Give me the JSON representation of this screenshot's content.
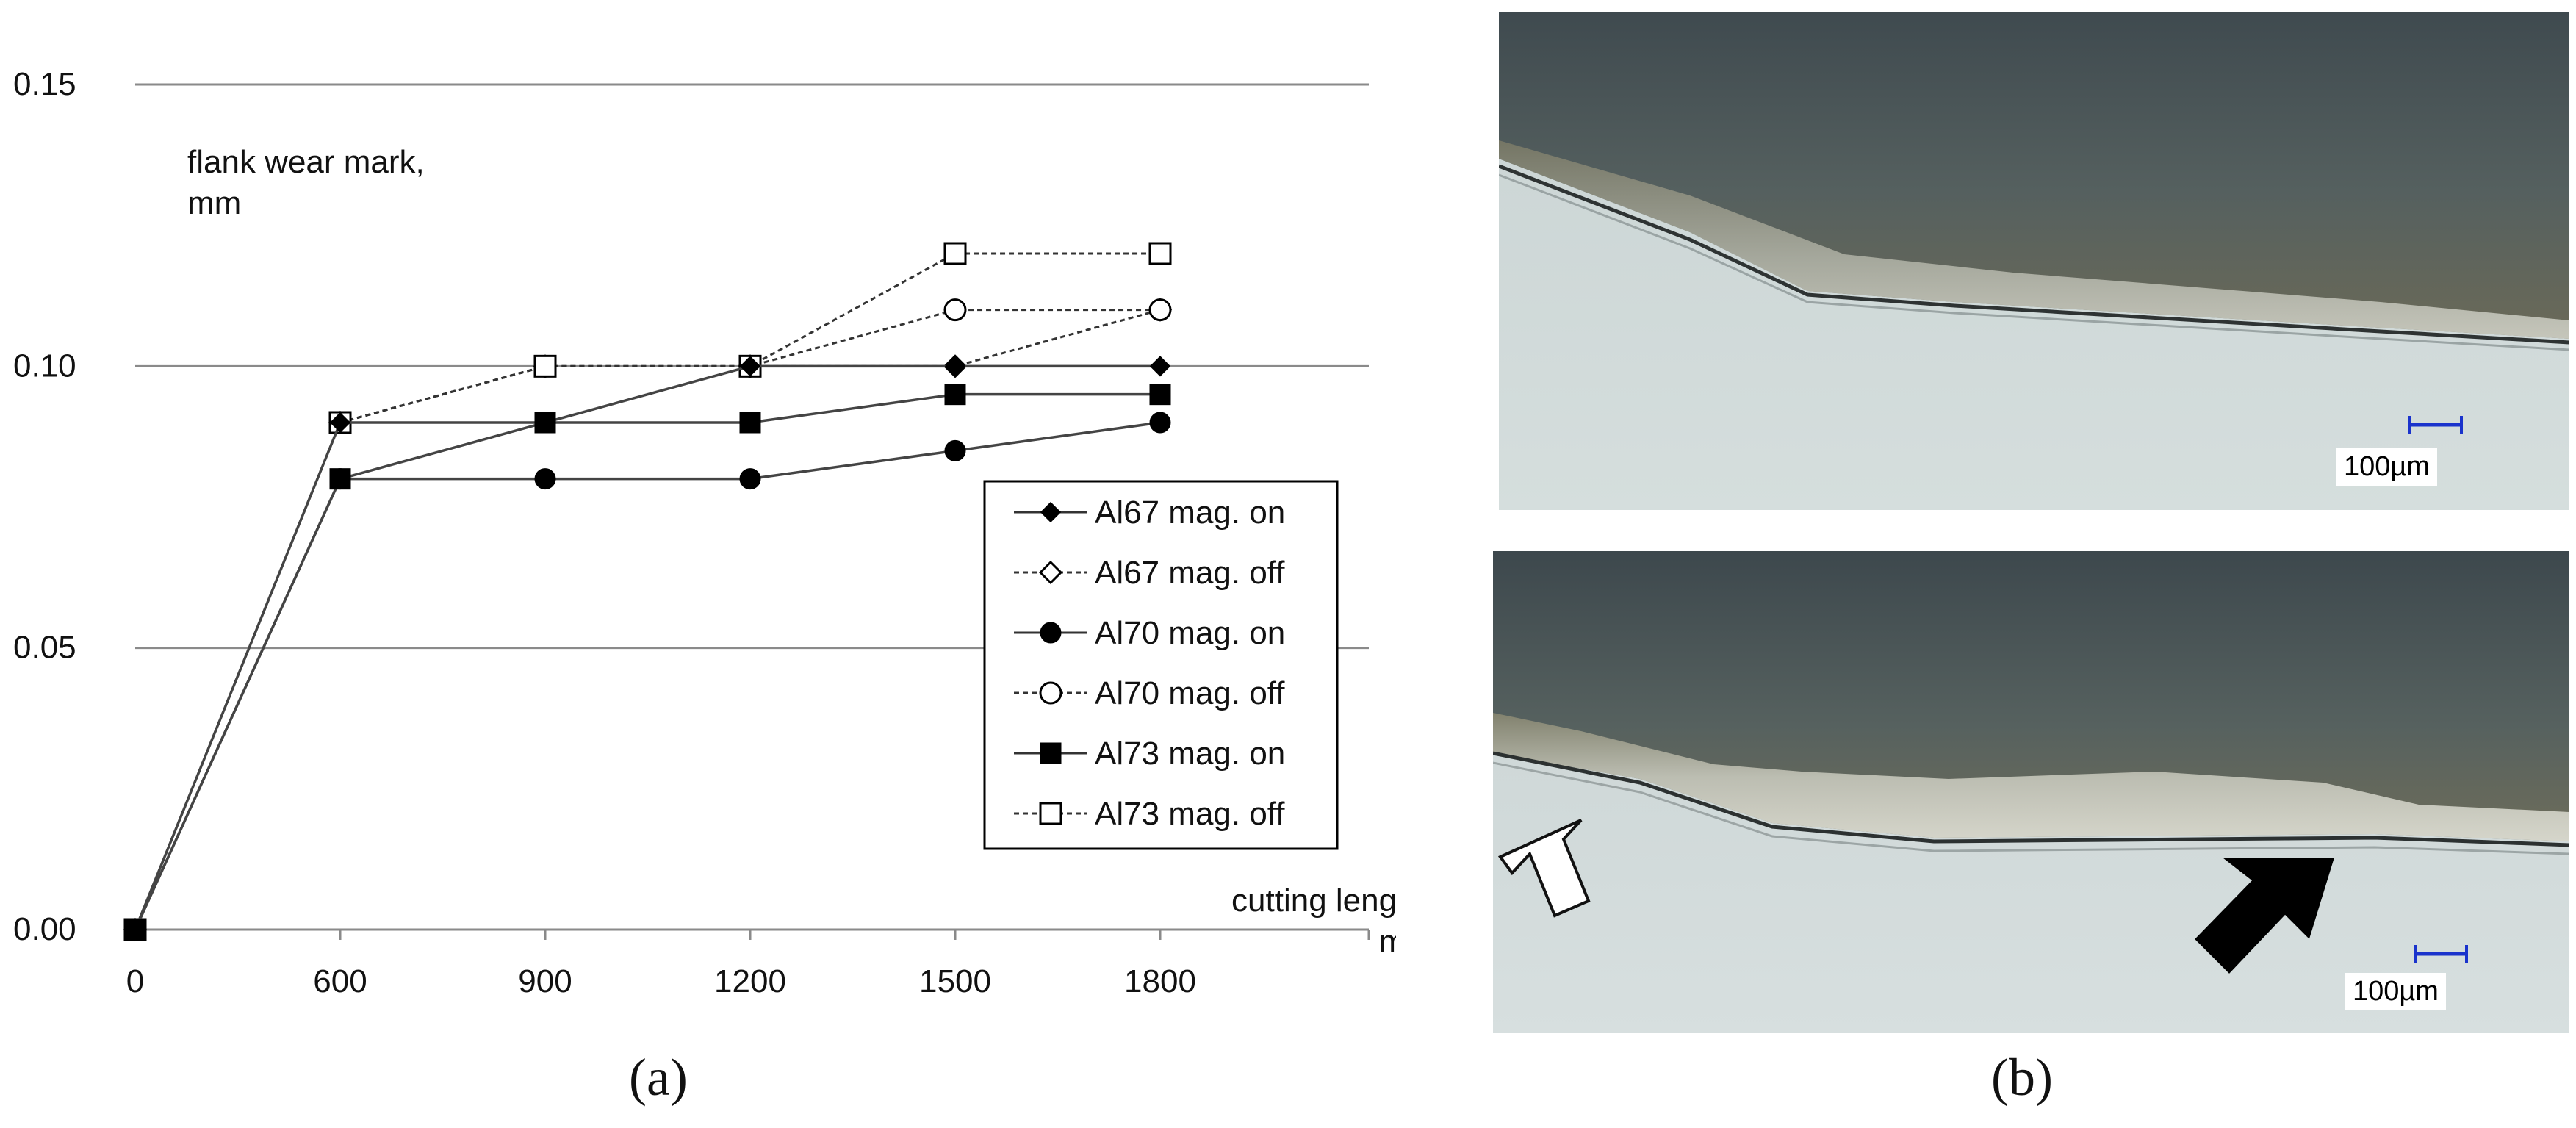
{
  "chart_data": {
    "type": "line",
    "ylabel": "flank wear mark,\nmm",
    "xlabel": "cutting length,\nmm",
    "categories": [
      "0",
      "600",
      "900",
      "1200",
      "1500",
      "1800"
    ],
    "ylim": [
      0,
      0.15
    ],
    "yticks": [
      "0.00",
      "0.05",
      "0.10",
      "0.15"
    ],
    "grid": true,
    "legend_position": "lower-right",
    "series": [
      {
        "name": "Al67 mag. on",
        "values": [
          0,
          0.09,
          0.09,
          0.1,
          0.1,
          0.1
        ],
        "marker": "filled-diamond",
        "line": "solid"
      },
      {
        "name": "Al67 mag. off",
        "values": [
          0,
          0.09,
          0.1,
          0.1,
          0.1,
          0.11
        ],
        "marker": "open-diamond",
        "line": "dotted"
      },
      {
        "name": "Al70 mag. on",
        "values": [
          0,
          0.08,
          0.08,
          0.08,
          0.085,
          0.09
        ],
        "marker": "filled-circle",
        "line": "solid"
      },
      {
        "name": "Al70 mag. off",
        "values": [
          0,
          0.09,
          0.1,
          0.1,
          0.11,
          0.11
        ],
        "marker": "open-circle",
        "line": "dotted"
      },
      {
        "name": "Al73 mag. on",
        "values": [
          0,
          0.08,
          0.09,
          0.09,
          0.095,
          0.095
        ],
        "marker": "filled-square",
        "line": "solid"
      },
      {
        "name": "Al73 mag. off",
        "values": [
          0,
          0.09,
          0.1,
          0.1,
          0.12,
          0.12
        ],
        "marker": "open-square",
        "line": "dotted"
      }
    ]
  },
  "panel_labels": {
    "a": "(a)",
    "b": "(b)"
  },
  "photos": {
    "top_scale": "100µm",
    "bottom_scale": "100µm"
  }
}
